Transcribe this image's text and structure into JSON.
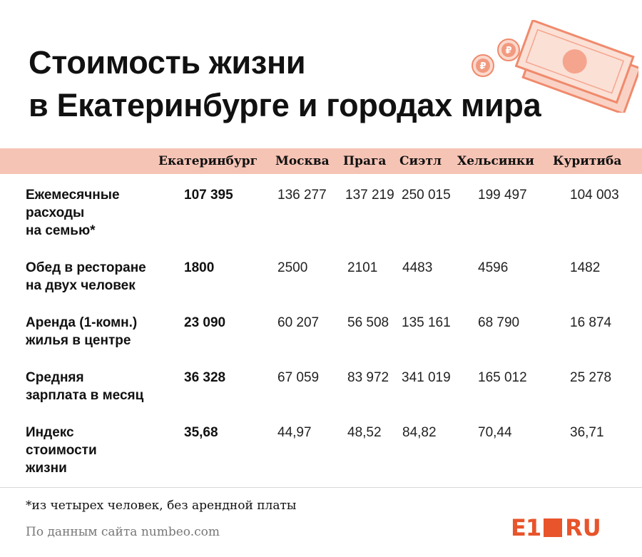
{
  "title": {
    "line1": "Стоимость жизни",
    "line2": "в Екатеринбурге и городах мира"
  },
  "columns": [
    "Екатеринбург",
    "Москва",
    "Прага",
    "Сиэтл",
    "Хельсинки",
    "Куритиба"
  ],
  "rows": [
    {
      "label": [
        "Ежемесячные",
        "расходы",
        "на семью*"
      ],
      "values": [
        "107 395",
        "136 277",
        "137 219",
        "250 015",
        "199 497",
        "104 003"
      ]
    },
    {
      "label": [
        "Обед в ресторане",
        "на двух человек"
      ],
      "values": [
        "1800",
        "2500",
        "2101",
        "4483",
        "4596",
        "1482"
      ]
    },
    {
      "label": [
        "Аренда (1-комн.)",
        "жилья в центре"
      ],
      "values": [
        "23 090",
        "60 207",
        "56 508",
        "135 161",
        "68 790",
        "16 874"
      ]
    },
    {
      "label": [
        "Средняя",
        "зарплата в месяц"
      ],
      "values": [
        "36 328",
        "67 059",
        "83 972",
        "341 019",
        "165 012",
        "25 278"
      ]
    },
    {
      "label": [
        "Индекс",
        "стоимости",
        "жизни"
      ],
      "values": [
        "35,68",
        "44,97",
        "48,52",
        "84,82",
        "70,44",
        "36,71"
      ]
    }
  ],
  "footnote": "*из четырех человек, без арендной платы",
  "source": "По данным сайта numbeo.com",
  "logo": {
    "left": "E1",
    "right": "RU"
  },
  "decoration": {
    "icon": "money-bills-coins-icon",
    "accent": "#e8542b",
    "light": "#f6c4b5"
  }
}
